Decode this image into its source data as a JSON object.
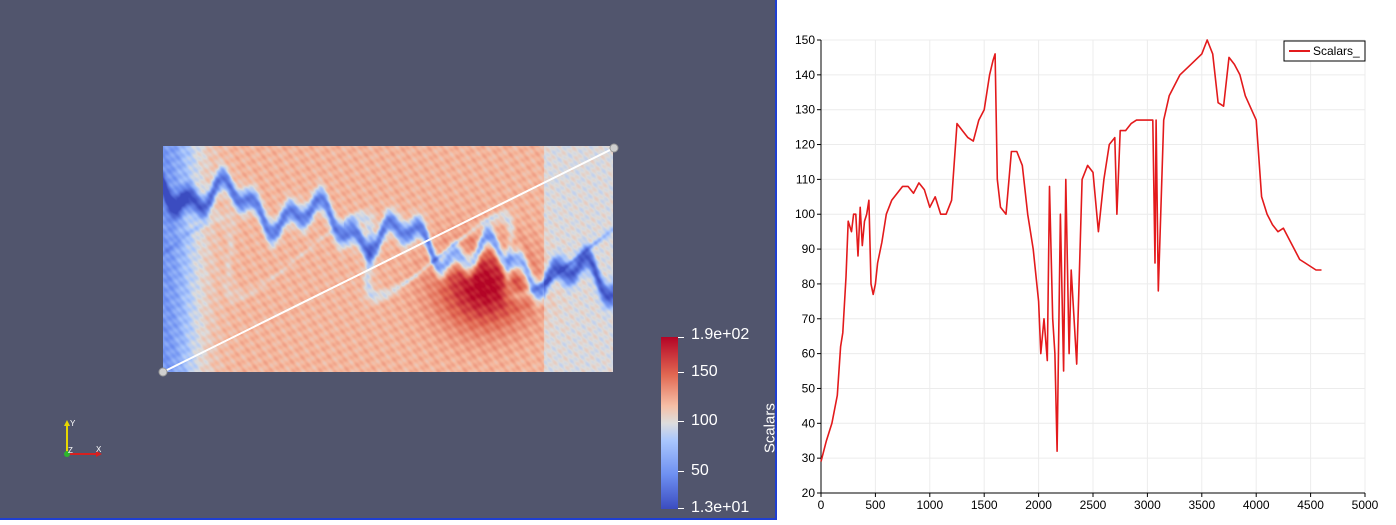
{
  "render_view": {
    "colorbar": {
      "title": "Scalars_",
      "labels": [
        "1.9e+02",
        "150",
        "100",
        "50",
        "1.3e+01"
      ],
      "colors": {
        "high": "#b40426",
        "mid": "#dddddd",
        "low": "#3b4cc0"
      }
    },
    "axes": {
      "x": "X",
      "y": "Y",
      "z": "Z"
    },
    "background": "#51556d"
  },
  "chart_data": {
    "type": "line",
    "xlim": [
      0,
      5000
    ],
    "ylim": [
      20,
      150
    ],
    "xticks": [
      0,
      500,
      1000,
      1500,
      2000,
      2500,
      3000,
      3500,
      4000,
      4500,
      5000
    ],
    "yticks": [
      20,
      30,
      40,
      50,
      60,
      70,
      80,
      90,
      100,
      110,
      120,
      130,
      140,
      150
    ],
    "grid": true,
    "legend_position": "top-right",
    "series": [
      {
        "name": "Scalars_",
        "color": "#e31a1c",
        "x": [
          0,
          50,
          100,
          150,
          180,
          200,
          230,
          250,
          280,
          300,
          320,
          340,
          360,
          380,
          400,
          420,
          440,
          460,
          480,
          500,
          520,
          560,
          600,
          650,
          700,
          750,
          800,
          850,
          900,
          950,
          1000,
          1050,
          1100,
          1150,
          1200,
          1250,
          1300,
          1350,
          1400,
          1450,
          1500,
          1550,
          1580,
          1600,
          1620,
          1650,
          1700,
          1750,
          1800,
          1850,
          1900,
          1950,
          2000,
          2020,
          2050,
          2080,
          2100,
          2130,
          2150,
          2170,
          2200,
          2230,
          2250,
          2280,
          2300,
          2350,
          2400,
          2450,
          2500,
          2550,
          2600,
          2650,
          2700,
          2720,
          2750,
          2800,
          2850,
          2900,
          3000,
          3050,
          3070,
          3080,
          3100,
          3150,
          3200,
          3300,
          3400,
          3500,
          3550,
          3600,
          3650,
          3700,
          3750,
          3800,
          3850,
          3900,
          4000,
          4050,
          4100,
          4150,
          4200,
          4250,
          4300,
          4350,
          4400,
          4450,
          4500,
          4550,
          4600
        ],
        "y": [
          29,
          35,
          40,
          48,
          62,
          66,
          82,
          98,
          95,
          100,
          100,
          88,
          102,
          91,
          98,
          100,
          104,
          80,
          77,
          80,
          86,
          92,
          100,
          104,
          106,
          108,
          108,
          106,
          109,
          107,
          102,
          105,
          100,
          100,
          104,
          126,
          124,
          122,
          121,
          127,
          130,
          140,
          144,
          146,
          110,
          102,
          100,
          118,
          118,
          114,
          100,
          90,
          75,
          60,
          70,
          58,
          108,
          70,
          60,
          32,
          100,
          55,
          110,
          60,
          84,
          57,
          110,
          114,
          112,
          95,
          110,
          120,
          122,
          100,
          124,
          124,
          126,
          127,
          127,
          127,
          86,
          127,
          78,
          127,
          134,
          140,
          143,
          146,
          150,
          146,
          132,
          131,
          145,
          143,
          140,
          134,
          127,
          105,
          100,
          97,
          95,
          96,
          93,
          90,
          87,
          86,
          85,
          84,
          84
        ]
      }
    ]
  }
}
